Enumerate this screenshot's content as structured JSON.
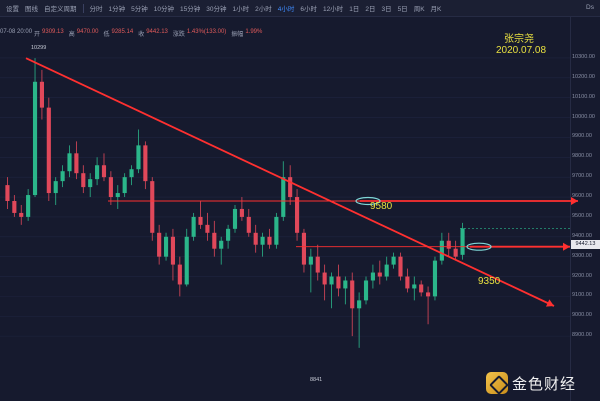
{
  "toolbar": {
    "items": [
      "设置",
      "图线",
      "自定义周期",
      "分时",
      "1分钟",
      "5分钟",
      "10分钟",
      "15分钟",
      "30分钟",
      "1小时",
      "2小时",
      "4小时",
      "6小时",
      "12小时",
      "1日",
      "2日",
      "3日",
      "5日",
      "周K",
      "月K"
    ],
    "active_index": 11,
    "right_label": "Ds"
  },
  "infobar": {
    "datetime": "07-08 20:00",
    "open_label": "开",
    "open": "9309.13",
    "high_label": "高",
    "high": "9470.00",
    "low_label": "低",
    "low": "9285.14",
    "close_label": "收",
    "close": "9442.13",
    "change_label": "涨跌",
    "change": "1.43%(133.00)",
    "amplitude_label": "振幅",
    "amplitude": "1.99%"
  },
  "overlay": {
    "author": "张宗尧",
    "date": "2020.07.08",
    "level_upper": "9580",
    "level_lower": "9350",
    "high_mark": "10299",
    "low_mark": "8841",
    "last_price": "9442.13",
    "annotation_color": "#ff3030",
    "text_color": "#e8e040",
    "ellipse_color": "#7fd7d7"
  },
  "logo": {
    "text": "金色财经"
  },
  "chart_data": {
    "type": "candlestick",
    "title": "",
    "xlabel": "",
    "ylabel": "",
    "ylim": [
      8800,
      10350
    ],
    "yticks": [
      "10300.00",
      "10200.00",
      "10100.00",
      "10000.00",
      "9900.00",
      "9800.00",
      "9700.00",
      "9600.00",
      "9500.00",
      "9400.00",
      "9300.00",
      "9200.00",
      "9100.00",
      "9000.00",
      "8900.00"
    ],
    "candles": [
      [
        9660,
        9700,
        9540,
        9580
      ],
      [
        9580,
        9610,
        9500,
        9520
      ],
      [
        9520,
        9560,
        9460,
        9500
      ],
      [
        9500,
        9640,
        9480,
        9610
      ],
      [
        9610,
        10299,
        9600,
        10180
      ],
      [
        10180,
        10240,
        9990,
        10050
      ],
      [
        10050,
        10100,
        9580,
        9620
      ],
      [
        9620,
        9700,
        9560,
        9680
      ],
      [
        9680,
        9760,
        9650,
        9730
      ],
      [
        9730,
        9860,
        9700,
        9820
      ],
      [
        9820,
        9880,
        9690,
        9720
      ],
      [
        9720,
        9760,
        9620,
        9650
      ],
      [
        9650,
        9720,
        9600,
        9690
      ],
      [
        9690,
        9800,
        9660,
        9760
      ],
      [
        9760,
        9820,
        9680,
        9700
      ],
      [
        9700,
        9730,
        9560,
        9600
      ],
      [
        9600,
        9660,
        9540,
        9620
      ],
      [
        9620,
        9720,
        9600,
        9700
      ],
      [
        9700,
        9760,
        9660,
        9740
      ],
      [
        9740,
        9940,
        9720,
        9860
      ],
      [
        9860,
        9880,
        9640,
        9680
      ],
      [
        9680,
        9700,
        9380,
        9420
      ],
      [
        9420,
        9460,
        9260,
        9300
      ],
      [
        9300,
        9420,
        9280,
        9400
      ],
      [
        9400,
        9440,
        9180,
        9260
      ],
      [
        9260,
        9300,
        9100,
        9160
      ],
      [
        9160,
        9440,
        9150,
        9400
      ],
      [
        9400,
        9520,
        9380,
        9500
      ],
      [
        9500,
        9580,
        9440,
        9460
      ],
      [
        9460,
        9520,
        9380,
        9420
      ],
      [
        9420,
        9480,
        9300,
        9340
      ],
      [
        9340,
        9400,
        9260,
        9380
      ],
      [
        9380,
        9460,
        9340,
        9440
      ],
      [
        9440,
        9560,
        9420,
        9540
      ],
      [
        9540,
        9600,
        9480,
        9500
      ],
      [
        9500,
        9540,
        9400,
        9420
      ],
      [
        9420,
        9460,
        9320,
        9360
      ],
      [
        9360,
        9420,
        9300,
        9400
      ],
      [
        9400,
        9440,
        9340,
        9360
      ],
      [
        9360,
        9520,
        9340,
        9500
      ],
      [
        9500,
        9780,
        9480,
        9700
      ],
      [
        9700,
        9760,
        9560,
        9600
      ],
      [
        9600,
        9640,
        9380,
        9420
      ],
      [
        9420,
        9440,
        9220,
        9260
      ],
      [
        9260,
        9340,
        9120,
        9300
      ],
      [
        9300,
        9360,
        9180,
        9220
      ],
      [
        9220,
        9260,
        9080,
        9160
      ],
      [
        9160,
        9220,
        9040,
        9200
      ],
      [
        9200,
        9260,
        9100,
        9140
      ],
      [
        9140,
        9200,
        9060,
        9180
      ],
      [
        9180,
        9220,
        8900,
        9040
      ],
      [
        9040,
        9120,
        8841,
        9080
      ],
      [
        9080,
        9200,
        9060,
        9180
      ],
      [
        9180,
        9260,
        9140,
        9220
      ],
      [
        9220,
        9280,
        9160,
        9200
      ],
      [
        9200,
        9300,
        9180,
        9260
      ],
      [
        9260,
        9320,
        9240,
        9300
      ],
      [
        9300,
        9320,
        9180,
        9200
      ],
      [
        9200,
        9240,
        9120,
        9140
      ],
      [
        9140,
        9200,
        9080,
        9160
      ],
      [
        9160,
        9180,
        9100,
        9120
      ],
      [
        9120,
        9150,
        8960,
        9100
      ],
      [
        9100,
        9300,
        9080,
        9280
      ],
      [
        9280,
        9420,
        9260,
        9380
      ],
      [
        9380,
        9420,
        9300,
        9340
      ],
      [
        9340,
        9380,
        9280,
        9300
      ],
      [
        9309.13,
        9470,
        9285.14,
        9442.13
      ]
    ],
    "annotations": [
      {
        "type": "trendline",
        "from": [
          "start",
          10299
        ],
        "to": [
          "end",
          9080
        ]
      },
      {
        "type": "horizontal",
        "level": 9580
      },
      {
        "type": "horizontal",
        "level": 9350
      }
    ]
  }
}
